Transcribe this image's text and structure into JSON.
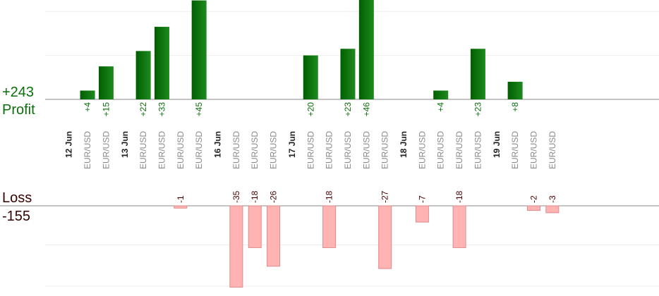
{
  "summary": {
    "profit_total": "+243",
    "profit_label": "Profit",
    "loss_label": "Loss",
    "loss_total": "-155"
  },
  "colors": {
    "profit_dark": "#005f00",
    "profit_light": "#1f8a1f",
    "loss_fill": "#ffb3b3",
    "loss_edge": "#e08a8a",
    "profit_text": "#0a6e0a",
    "loss_text": "#4a0000",
    "grid": "#eeeeee",
    "baseline": "#888888"
  },
  "chart_data": {
    "type": "bar",
    "categories": [
      {
        "kind": "date",
        "label": "12 Jun"
      },
      {
        "kind": "trade",
        "label": "EUR/USD",
        "value": 4,
        "text": "+4"
      },
      {
        "kind": "trade",
        "label": "EUR/USD",
        "value": 15,
        "text": "+15"
      },
      {
        "kind": "date",
        "label": "13 Jun"
      },
      {
        "kind": "trade",
        "label": "EUR/USD",
        "value": 22,
        "text": "+22"
      },
      {
        "kind": "trade",
        "label": "EUR/USD",
        "value": 33,
        "text": "+33"
      },
      {
        "kind": "trade",
        "label": "EUR/USD",
        "value": -1,
        "text": "-1"
      },
      {
        "kind": "trade",
        "label": "EUR/USD",
        "value": 45,
        "text": "+45"
      },
      {
        "kind": "date",
        "label": "16 Jun"
      },
      {
        "kind": "trade",
        "label": "EUR/USD",
        "value": -35,
        "text": "-35"
      },
      {
        "kind": "trade",
        "label": "EUR/USD",
        "value": -18,
        "text": "-18"
      },
      {
        "kind": "trade",
        "label": "EUR/USD",
        "value": -26,
        "text": "-26"
      },
      {
        "kind": "date",
        "label": "17 Jun"
      },
      {
        "kind": "trade",
        "label": "EUR/USD",
        "value": 20,
        "text": "+20"
      },
      {
        "kind": "trade",
        "label": "EUR/USD",
        "value": -18,
        "text": "-18"
      },
      {
        "kind": "trade",
        "label": "EUR/USD",
        "value": 23,
        "text": "+23"
      },
      {
        "kind": "trade",
        "label": "EUR/USD",
        "value": 46,
        "text": "+46"
      },
      {
        "kind": "trade",
        "label": "EUR/USD",
        "value": -27,
        "text": "-27"
      },
      {
        "kind": "date",
        "label": "18 Jun"
      },
      {
        "kind": "trade",
        "label": "EUR/USD",
        "value": -7,
        "text": "-7"
      },
      {
        "kind": "trade",
        "label": "EUR/USD",
        "value": 4,
        "text": "+4"
      },
      {
        "kind": "trade",
        "label": "EUR/USD",
        "value": -18,
        "text": "-18"
      },
      {
        "kind": "trade",
        "label": "EUR/USD",
        "value": 23,
        "text": "+23"
      },
      {
        "kind": "date",
        "label": "19 Jun"
      },
      {
        "kind": "trade",
        "label": "EUR/USD",
        "value": 8,
        "text": "+8"
      },
      {
        "kind": "trade",
        "label": "EUR/USD",
        "value": -2,
        "text": "-2"
      },
      {
        "kind": "trade",
        "label": "EUR/USD",
        "value": -3,
        "text": "-3"
      }
    ],
    "profit_scale_max": 20,
    "loss_scale_max": 30,
    "grid": true
  }
}
